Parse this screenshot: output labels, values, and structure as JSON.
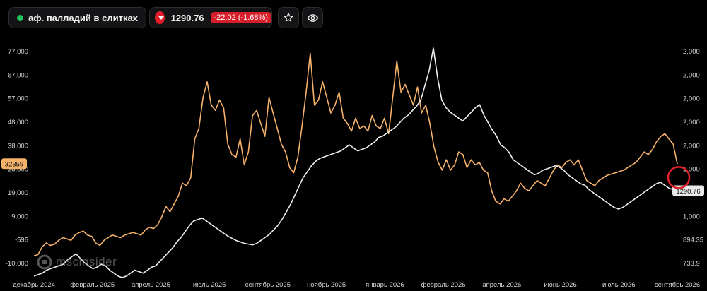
{
  "header": {
    "asset_name": "аф. палладий в слитках",
    "price": "1290.76",
    "change": "-22.02 (-1.68%)",
    "colors": {
      "status_dot": "#22c55e",
      "down": "#e11d2a"
    },
    "icons": [
      "chevron-down-icon",
      "arrow-down-icon",
      "star-icon",
      "eye-icon"
    ]
  },
  "watermark": {
    "text": "mscinsider"
  },
  "chart_data": {
    "type": "line",
    "x_labels": [
      "декабрь 2024",
      "февраль 2025",
      "апрель 2025",
      "июль 2025",
      "сентябрь 2025",
      "ноябрь 2025",
      "январь 2026",
      "февраль 2026",
      "апрель 2026",
      "июнь 2026",
      "июль 2026",
      "сентябрь 2026"
    ],
    "left_axis": {
      "ticks": [
        "77,000",
        "67,000",
        "57,000",
        "48,000",
        "38,000",
        "28,000",
        "19,000",
        "9,000",
        "-595",
        "-10,000"
      ],
      "range": [
        -10000,
        77000
      ]
    },
    "right_axis": {
      "ticks": [
        "2,000",
        "2,000",
        "2,000",
        "2,000",
        "2,000",
        "1,000",
        "1,000",
        "1,000",
        "894.35",
        "733.9"
      ],
      "range": [
        733.9,
        2250
      ]
    },
    "last_values": {
      "orange": "32359",
      "white": "1290.76"
    },
    "series": [
      {
        "color": "#f6b26b",
        "axis": "left",
        "values": [
          -3000,
          -2500,
          500,
          2000,
          1000,
          1500,
          3000,
          4000,
          3500,
          3000,
          5000,
          6000,
          6500,
          5000,
          4500,
          2000,
          1000,
          3000,
          4000,
          5000,
          4500,
          4000,
          5000,
          5500,
          6000,
          5500,
          5000,
          7000,
          8000,
          7500,
          9000,
          12000,
          16000,
          14000,
          17000,
          20000,
          25000,
          24000,
          27000,
          42000,
          46000,
          58000,
          64000,
          55000,
          53000,
          57000,
          54000,
          40000,
          36000,
          35000,
          42000,
          32000,
          37000,
          51000,
          53000,
          48000,
          43000,
          58000,
          52000,
          46000,
          40000,
          37000,
          31000,
          29000,
          35000,
          47000,
          60000,
          75000,
          55000,
          57000,
          64000,
          58000,
          52000,
          55000,
          60000,
          50000,
          48000,
          45000,
          50000,
          46000,
          47000,
          45000,
          51000,
          47000,
          46000,
          50000,
          44000,
          58000,
          72000,
          60000,
          63000,
          59000,
          55000,
          62000,
          52000,
          55000,
          48000,
          39000,
          33000,
          30000,
          34000,
          30000,
          32000,
          37000,
          36000,
          31000,
          34000,
          32000,
          33000,
          30000,
          29000,
          22000,
          18000,
          17000,
          19000,
          18000,
          20000,
          22000,
          25000,
          23000,
          22000,
          24000,
          26000,
          25000,
          24000,
          27000,
          30000,
          32000,
          31000,
          33000,
          34000,
          32000,
          34000,
          30000,
          26000,
          25000,
          24000,
          26000,
          27000,
          28000,
          28500,
          29000,
          29500,
          30000,
          31000,
          32000,
          33000,
          35000,
          37000,
          36000,
          38000,
          41000,
          43000,
          44000,
          42000,
          40000,
          32359
        ]
      },
      {
        "color": "#eeeeee",
        "axis": "right",
        "values": [
          720,
          730,
          740,
          760,
          770,
          780,
          790,
          800,
          830,
          850,
          870,
          840,
          810,
          790,
          770,
          780,
          800,
          790,
          760,
          740,
          720,
          710,
          720,
          740,
          760,
          750,
          740,
          760,
          780,
          790,
          820,
          850,
          880,
          910,
          950,
          980,
          1020,
          1060,
          1090,
          1100,
          1110,
          1090,
          1070,
          1050,
          1030,
          1010,
          990,
          975,
          960,
          950,
          940,
          935,
          930,
          940,
          960,
          980,
          1000,
          1030,
          1060,
          1100,
          1150,
          1200,
          1260,
          1320,
          1380,
          1420,
          1460,
          1490,
          1510,
          1520,
          1530,
          1540,
          1550,
          1560,
          1580,
          1600,
          1580,
          1560,
          1570,
          1580,
          1600,
          1620,
          1650,
          1660,
          1680,
          1700,
          1720,
          1750,
          1780,
          1800,
          1830,
          1860,
          1900,
          2000,
          2100,
          2250,
          2050,
          1900,
          1850,
          1820,
          1800,
          1780,
          1760,
          1790,
          1820,
          1850,
          1870,
          1800,
          1750,
          1700,
          1660,
          1600,
          1580,
          1550,
          1500,
          1480,
          1460,
          1440,
          1420,
          1400,
          1410,
          1430,
          1440,
          1450,
          1460,
          1450,
          1430,
          1400,
          1380,
          1360,
          1340,
          1330,
          1300,
          1280,
          1260,
          1240,
          1220,
          1200,
          1180,
          1170,
          1180,
          1200,
          1220,
          1240,
          1260,
          1280,
          1300,
          1320,
          1340,
          1350,
          1330,
          1310,
          1300,
          1290.76
        ]
      }
    ],
    "annotation": {
      "shape": "circle",
      "color": "#e0202a"
    },
    "grid": false
  }
}
